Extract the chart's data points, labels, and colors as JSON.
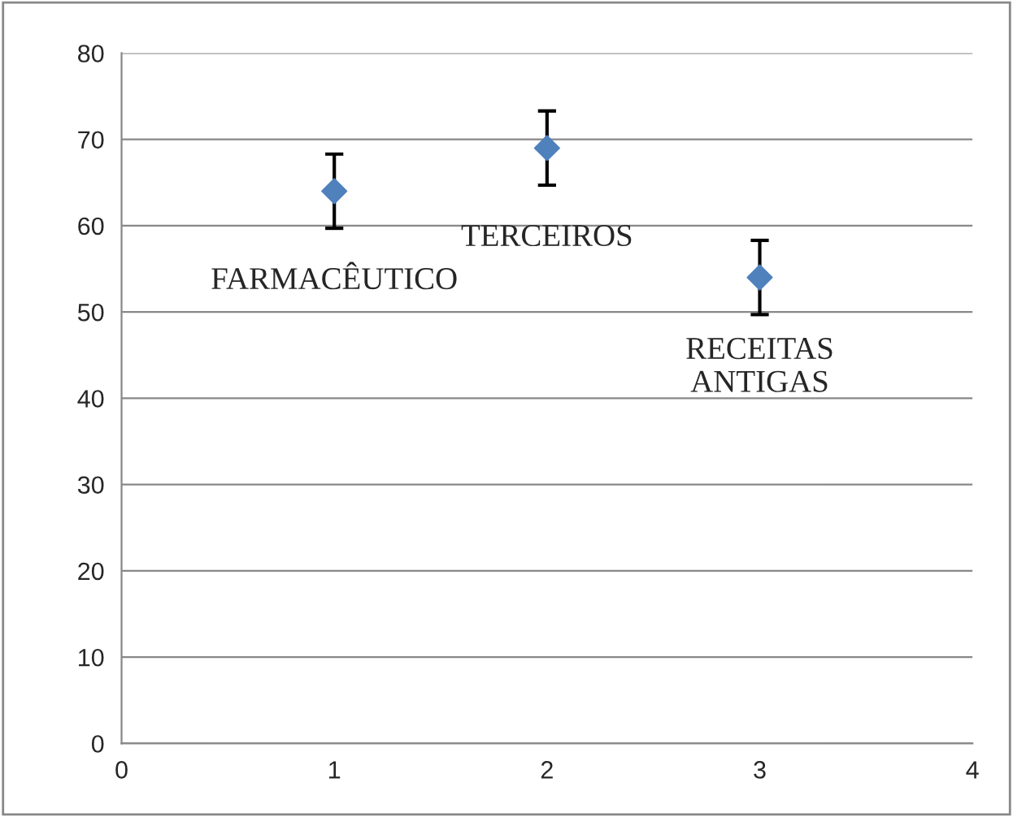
{
  "chart_data": {
    "type": "scatter",
    "x": [
      1,
      2,
      3
    ],
    "values": [
      64,
      69,
      54
    ],
    "errors": [
      4.3,
      4.3,
      4.3
    ],
    "color": "#4f81bd",
    "marker": "diamond",
    "xlim": [
      0,
      4
    ],
    "xticks": [
      0,
      1,
      2,
      3,
      4
    ],
    "ylim": [
      0,
      80
    ],
    "yticks": [
      0,
      10,
      20,
      30,
      40,
      50,
      60,
      70,
      80
    ],
    "grid": "y",
    "legend": false,
    "annotations": [
      {
        "text": "FARMACÊUTICO",
        "x": 1,
        "y": 64
      },
      {
        "text": "TERCEIROS",
        "x": 2,
        "y": 69
      },
      {
        "text": "RECEITAS\nANTIGAS",
        "x": 3,
        "y": 54
      }
    ]
  }
}
